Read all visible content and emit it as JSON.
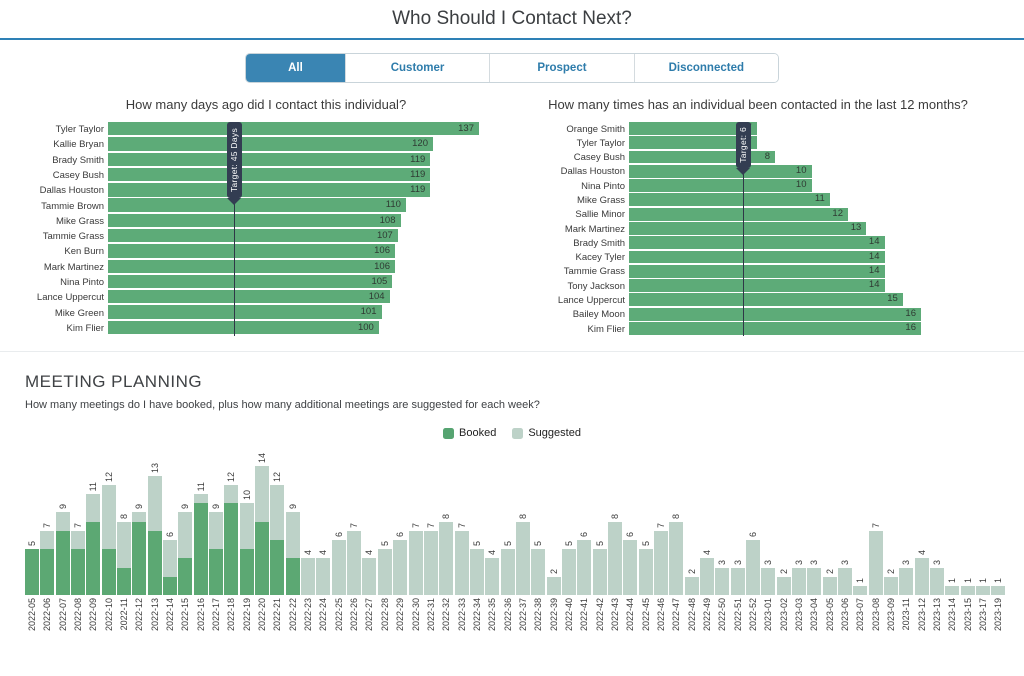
{
  "header": {
    "title": "Who Should I Contact Next?"
  },
  "tabs": [
    {
      "label": "All",
      "active": true
    },
    {
      "label": "Customer",
      "active": false
    },
    {
      "label": "Prospect",
      "active": false
    },
    {
      "label": "Disconnected",
      "active": false
    }
  ],
  "colors": {
    "accent_blue": "#3a85b3",
    "tab_text_blue": "#2e7cab",
    "bar_green": "#5dab78",
    "booked_green": "#5ca873",
    "suggested_green": "#bdd2c8",
    "target_navy": "#333d52"
  },
  "chart_data": [
    {
      "type": "bar",
      "orientation": "horizontal",
      "title": "How many days ago did I contact this individual?",
      "target": {
        "label": "Target: 45 Days",
        "value": 45
      },
      "categories": [
        "Tyler Taylor",
        "Kallie Bryan",
        "Brady Smith",
        "Casey Bush",
        "Dallas Houston",
        "Tammie Brown",
        "Mike Grass",
        "Tammie Grass",
        "Ken Burn",
        "Mark Martinez",
        "Nina Pinto",
        "Lance Uppercut",
        "Mike Green",
        "Kim Flier"
      ],
      "values": [
        137,
        120,
        119,
        119,
        119,
        110,
        108,
        107,
        106,
        106,
        105,
        104,
        101,
        100
      ],
      "xlim": [
        0,
        140
      ],
      "grid": false
    },
    {
      "type": "bar",
      "orientation": "horizontal",
      "title": "How many times has an individual been contacted in the last 12 months?",
      "target": {
        "label": "Target: 6",
        "value": 6
      },
      "categories": [
        "Orange Smith",
        "Tyler Taylor",
        "Casey Bush",
        "Dallas Houston",
        "Nina Pinto",
        "Mike Grass",
        "Sallie Minor",
        "Mark Martinez",
        "Brady Smith",
        "Kacey Tyler",
        "Tammie Grass",
        "Tony Jackson",
        "Lance Uppercut",
        "Bailey Moon",
        "Kim Flier"
      ],
      "values": [
        7,
        7,
        8,
        10,
        10,
        11,
        12,
        13,
        14,
        14,
        14,
        14,
        15,
        16,
        16
      ],
      "xlim": [
        0,
        20
      ],
      "grid": false
    },
    {
      "type": "bar",
      "stacked": true,
      "title": "MEETING PLANNING",
      "subtitle": "How many meetings do I have booked, plus how many additional meetings are suggested for each week?",
      "legend": [
        "Booked",
        "Suggested"
      ],
      "legend_position": "top-center",
      "ylim": [
        0,
        14
      ],
      "grid": false,
      "categories": [
        "2022-05",
        "2022-06",
        "2022-07",
        "2022-08",
        "2022-09",
        "2022-10",
        "2022-11",
        "2022-12",
        "2022-13",
        "2022-14",
        "2022-15",
        "2022-16",
        "2022-17",
        "2022-18",
        "2022-19",
        "2022-20",
        "2022-21",
        "2022-22",
        "2022-23",
        "2022-24",
        "2022-25",
        "2022-26",
        "2022-27",
        "2022-28",
        "2022-29",
        "2022-30",
        "2022-31",
        "2022-32",
        "2022-33",
        "2022-34",
        "2022-35",
        "2022-36",
        "2022-37",
        "2022-38",
        "2022-39",
        "2022-40",
        "2022-41",
        "2022-42",
        "2022-43",
        "2022-44",
        "2022-45",
        "2022-46",
        "2022-47",
        "2022-48",
        "2022-49",
        "2022-50",
        "2022-51",
        "2022-52",
        "2023-01",
        "2023-02",
        "2023-03",
        "2023-04",
        "2023-05",
        "2023-06",
        "2023-07",
        "2023-08",
        "2023-09",
        "2023-11",
        "2023-12",
        "2023-13",
        "2023-14",
        "2023-15",
        "2023-17",
        "2023-19"
      ],
      "series": [
        {
          "name": "Booked",
          "values": [
            5,
            5,
            7,
            5,
            8,
            5,
            3,
            8,
            7,
            2,
            4,
            10,
            5,
            10,
            5,
            8,
            6,
            4,
            0,
            0,
            0,
            0,
            0,
            0,
            0,
            0,
            0,
            0,
            0,
            0,
            0,
            0,
            0,
            0,
            0,
            0,
            0,
            0,
            0,
            0,
            0,
            0,
            0,
            0,
            0,
            0,
            0,
            0,
            0,
            0,
            0,
            0,
            0,
            0,
            0,
            0,
            0,
            0,
            0,
            0,
            0,
            0,
            0,
            0
          ]
        },
        {
          "name": "Suggested",
          "values": [
            0,
            2,
            2,
            2,
            3,
            7,
            5,
            1,
            6,
            4,
            5,
            1,
            4,
            2,
            5,
            6,
            6,
            5,
            4,
            4,
            6,
            7,
            4,
            5,
            6,
            7,
            7,
            8,
            7,
            5,
            4,
            5,
            8,
            5,
            2,
            5,
            6,
            5,
            8,
            6,
            5,
            7,
            8,
            2,
            4,
            3,
            3,
            6,
            3,
            2,
            3,
            3,
            2,
            3,
            1,
            7,
            2,
            3,
            4,
            3,
            1,
            1,
            1,
            1
          ]
        }
      ],
      "total_labels": [
        5,
        7,
        9,
        7,
        11,
        12,
        8,
        9,
        13,
        6,
        9,
        11,
        9,
        12,
        10,
        14,
        12,
        9,
        4,
        4,
        6,
        7,
        4,
        5,
        6,
        7,
        7,
        8,
        7,
        5,
        4,
        5,
        8,
        5,
        2,
        5,
        6,
        5,
        8,
        6,
        5,
        7,
        8,
        2,
        4,
        3,
        3,
        6,
        3,
        2,
        3,
        3,
        2,
        3,
        1,
        7,
        2,
        3,
        4,
        3,
        1,
        1,
        1,
        1
      ]
    }
  ]
}
